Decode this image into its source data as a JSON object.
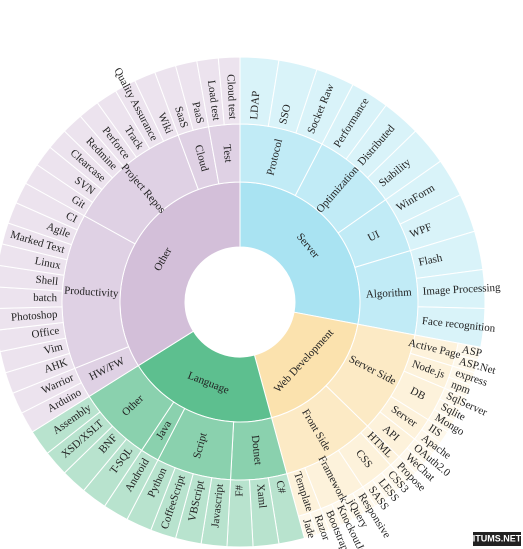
{
  "chart_data": {
    "type": "sunburst",
    "watermark": "ITUMS.NET",
    "nodes": [
      {
        "name": "Server",
        "color": "#a9e3f2",
        "children": [
          {
            "name": "Protocol",
            "children": [
              {
                "name": "LDAP",
                "value": 9
              },
              {
                "name": "SSO",
                "value": 9
              },
              {
                "name": "Socket Raw",
                "value": 9
              }
            ]
          },
          {
            "name": "Optimization",
            "children": [
              {
                "name": "Performance",
                "value": 9
              },
              {
                "name": "Distributed",
                "value": 9
              },
              {
                "name": "Stability",
                "value": 9
              }
            ]
          },
          {
            "name": "UI",
            "children": [
              {
                "name": "WinForm",
                "value": 9
              },
              {
                "name": "WPF",
                "value": 9
              }
            ]
          },
          {
            "name": "Algorithm",
            "children": [
              {
                "name": "Flash",
                "value": 9
              },
              {
                "name": "Image Processing",
                "value": 9
              },
              {
                "name": "Face recognition",
                "value": 9
              }
            ]
          }
        ]
      },
      {
        "name": "Web Development",
        "color": "#fbe2ae",
        "children": [
          {
            "name": "Server Side",
            "children": [
              {
                "name": "Active Page",
                "children": [
                  {
                    "name": "ASP",
                    "value": 3
                  },
                  {
                    "name": "ASP.Net",
                    "value": 3
                  }
                ]
              },
              {
                "name": "Node.js",
                "children": [
                  {
                    "name": "express",
                    "value": 3
                  },
                  {
                    "name": "npm",
                    "value": 3
                  }
                ]
              },
              {
                "name": "DB",
                "children": [
                  {
                    "name": "SqlServer",
                    "value": 3
                  },
                  {
                    "name": "Sqlite",
                    "value": 3
                  },
                  {
                    "name": "Mongo",
                    "value": 3
                  }
                ]
              },
              {
                "name": "Server",
                "children": [
                  {
                    "name": "IIS",
                    "value": 3
                  },
                  {
                    "name": "Apache",
                    "value": 3
                  }
                ]
              },
              {
                "name": "API",
                "children": [
                  {
                    "name": "OAuth2.0",
                    "value": 3
                  },
                  {
                    "name": "WeChat",
                    "value": 3
                  }
                ]
              }
            ]
          },
          {
            "name": "Front Side",
            "children": [
              {
                "name": "HTML",
                "children": [
                  {
                    "name": "Propose",
                    "value": 3
                  }
                ]
              },
              {
                "name": "CSS",
                "children": [
                  {
                    "name": "CSS3",
                    "value": 3
                  },
                  {
                    "name": "LESS",
                    "value": 3
                  },
                  {
                    "name": "SASS",
                    "value": 3
                  }
                ]
              },
              {
                "name": "Framework",
                "children": [
                  {
                    "name": "Responsive",
                    "value": 3
                  },
                  {
                    "name": "jQuery",
                    "value": 3
                  },
                  {
                    "name": "KnockoutJs",
                    "value": 3
                  },
                  {
                    "name": "Bootstrap",
                    "value": 3
                  }
                ]
              },
              {
                "name": "Template",
                "children": [
                  {
                    "name": "Razor",
                    "value": 3
                  },
                  {
                    "name": "Jade",
                    "value": 3
                  }
                ]
              }
            ]
          }
        ]
      },
      {
        "name": "Language",
        "color": "#5dbf8f",
        "children": [
          {
            "name": "Dotnet",
            "children": [
              {
                "name": "C#",
                "value": 6
              },
              {
                "name": "Xaml",
                "value": 6
              },
              {
                "name": "F#",
                "value": 6
              }
            ]
          },
          {
            "name": "Script",
            "children": [
              {
                "name": "Javascript",
                "value": 6
              },
              {
                "name": "VBScript",
                "value": 6
              },
              {
                "name": "CoffeeScript",
                "value": 6
              },
              {
                "name": "Python",
                "value": 6
              }
            ]
          },
          {
            "name": "Java",
            "children": [
              {
                "name": "Android",
                "value": 6
              }
            ]
          },
          {
            "name": "Other",
            "children": [
              {
                "name": "T-SQL",
                "value": 6
              },
              {
                "name": "BNF",
                "value": 6
              },
              {
                "name": "XSD/XSLT",
                "value": 6
              },
              {
                "name": "Assembly",
                "value": 6
              }
            ]
          }
        ]
      },
      {
        "name": "Other",
        "color": "#d3bfd9",
        "children": [
          {
            "name": "HW/FW",
            "children": [
              {
                "name": "Arduino",
                "value": 5
              },
              {
                "name": "Warrior",
                "value": 5
              }
            ]
          },
          {
            "name": "Productivity",
            "children": [
              {
                "name": "AHK",
                "value": 5
              },
              {
                "name": "Vim",
                "value": 5
              },
              {
                "name": "Office",
                "value": 5
              },
              {
                "name": "Photoshop",
                "value": 5
              },
              {
                "name": "batch",
                "value": 5
              },
              {
                "name": "Shell",
                "value": 5
              },
              {
                "name": "Linux",
                "value": 5
              },
              {
                "name": "Marked Text",
                "value": 5
              },
              {
                "name": "Agile",
                "value": 5
              },
              {
                "name": "CI",
                "value": 5
              }
            ]
          },
          {
            "name": "Project Repos",
            "children": [
              {
                "name": "Git",
                "value": 5
              },
              {
                "name": "SVN",
                "value": 5
              },
              {
                "name": "Clearcase",
                "value": 5
              },
              {
                "name": "Redmine",
                "value": 5
              },
              {
                "name": "Perforce",
                "value": 5
              },
              {
                "name": "Track",
                "value": 5
              },
              {
                "name": "Quality Assurance",
                "value": 5
              },
              {
                "name": "Wiki",
                "value": 5
              }
            ]
          },
          {
            "name": "Cloud",
            "children": [
              {
                "name": "SaaS",
                "value": 5
              },
              {
                "name": "PaaS",
                "value": 5
              }
            ]
          },
          {
            "name": "Test",
            "children": [
              {
                "name": "Load test",
                "value": 5
              },
              {
                "name": "Cloud test",
                "value": 5
              }
            ]
          }
        ]
      }
    ]
  }
}
